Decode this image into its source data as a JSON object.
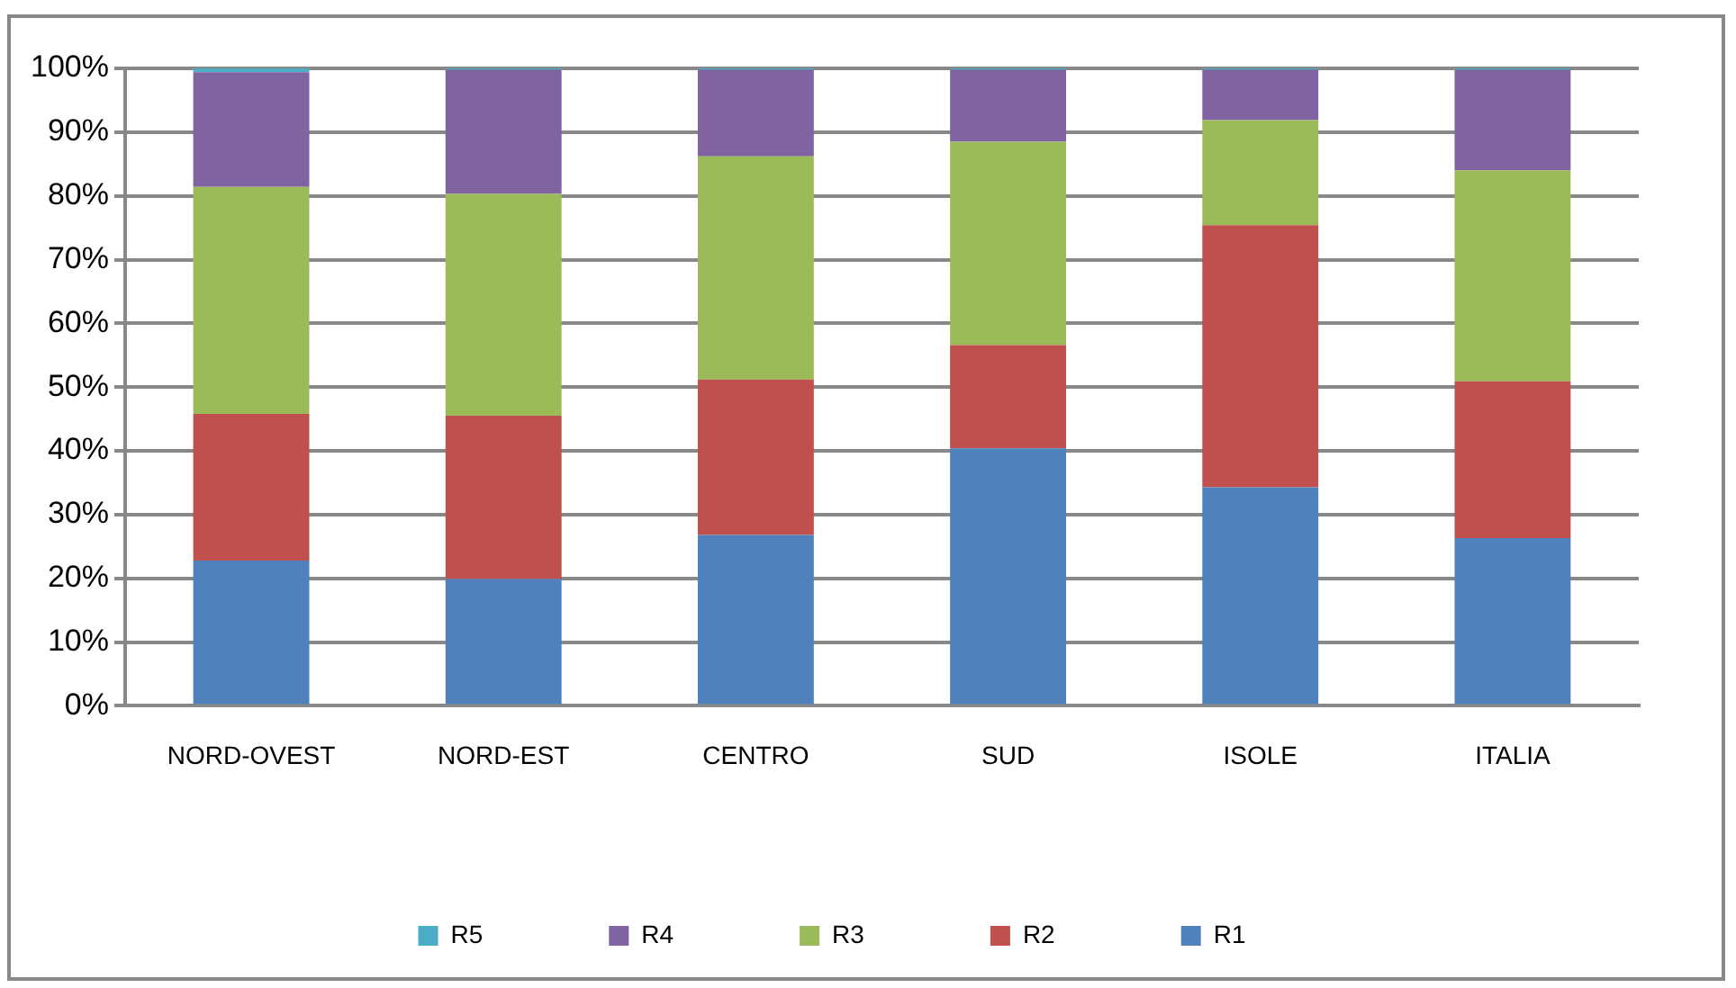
{
  "chart_data": {
    "type": "bar",
    "stacked": true,
    "categories": [
      "NORD-OVEST",
      "NORD-EST",
      "CENTRO",
      "SUD",
      "ISOLE",
      "ITALIA"
    ],
    "series": [
      {
        "name": "R1",
        "color": "#4f81bd",
        "values": [
          22.8,
          19.9,
          26.8,
          40.4,
          34.3,
          26.3
        ]
      },
      {
        "name": "R2",
        "color": "#c0504d",
        "values": [
          23.0,
          25.6,
          24.4,
          16.2,
          41.1,
          24.6
        ]
      },
      {
        "name": "R3",
        "color": "#9bbb59",
        "values": [
          35.6,
          34.8,
          35.0,
          31.9,
          16.5,
          33.1
        ]
      },
      {
        "name": "R4",
        "color": "#8064a2",
        "values": [
          18.0,
          19.5,
          13.6,
          11.3,
          7.9,
          15.8
        ]
      },
      {
        "name": "R5",
        "color": "#4bacc6",
        "values": [
          0.6,
          0.2,
          0.2,
          0.2,
          0.2,
          0.2
        ]
      }
    ],
    "ylim": [
      0,
      100
    ],
    "yticks": [
      {
        "value": 0,
        "label": "0%"
      },
      {
        "value": 10,
        "label": "10%"
      },
      {
        "value": 20,
        "label": "20%"
      },
      {
        "value": 30,
        "label": "30%"
      },
      {
        "value": 40,
        "label": "40%"
      },
      {
        "value": 50,
        "label": "50%"
      },
      {
        "value": 60,
        "label": "60%"
      },
      {
        "value": 70,
        "label": "70%"
      },
      {
        "value": 80,
        "label": "80%"
      },
      {
        "value": 90,
        "label": "90%"
      },
      {
        "value": 100,
        "label": "100%"
      }
    ],
    "grid": "y",
    "legend": "bottom"
  }
}
